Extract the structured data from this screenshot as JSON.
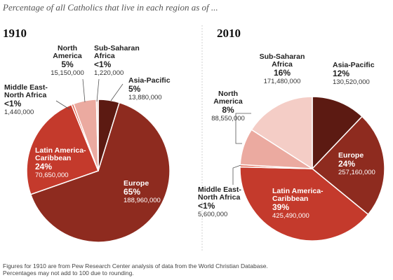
{
  "subtitle": "Percentage of all Catholics that live in each region as of ...",
  "footnote": {
    "line1": "Figures for 1910 are from Pew Research Center analysis of data from the World Christian Database.",
    "line2": "Percentages may not add to 100 due to rounding."
  },
  "colors": {
    "asia_pacific": "#5c1a12",
    "europe": "#8e2b1f",
    "latin_america": "#c43a2c",
    "mena": "#e4644f",
    "north_america": "#ebaaa0",
    "sub_saharan": "#f4cdc6"
  },
  "chart_data": [
    {
      "type": "pie",
      "title": "1910",
      "slices": [
        {
          "name": "Asia-Pacific",
          "percent_label": "5%",
          "value": 13880000,
          "count_label": "13,880,000"
        },
        {
          "name": "Europe",
          "percent_label": "65%",
          "value": 188960000,
          "count_label": "188,960,000"
        },
        {
          "name": "Latin America-Caribbean",
          "name_lines": [
            "Latin America-",
            "Caribbean"
          ],
          "percent_label": "24%",
          "value": 70650000,
          "count_label": "70,650,000"
        },
        {
          "name": "Middle East-North Africa",
          "name_lines": [
            "Middle East-",
            "North Africa"
          ],
          "percent_label": "<1%",
          "value": 1440000,
          "count_label": "1,440,000"
        },
        {
          "name": "North America",
          "name_lines": [
            "North",
            "America"
          ],
          "percent_label": "5%",
          "value": 15150000,
          "count_label": "15,150,000"
        },
        {
          "name": "Sub-Saharan Africa",
          "name_lines": [
            "Sub-Saharan",
            "Africa"
          ],
          "percent_label": "<1%",
          "value": 1220000,
          "count_label": "1,220,000"
        }
      ]
    },
    {
      "type": "pie",
      "title": "2010",
      "slices": [
        {
          "name": "Asia-Pacific",
          "percent_label": "12%",
          "value": 130520000,
          "count_label": "130,520,000"
        },
        {
          "name": "Europe",
          "percent_label": "24%",
          "value": 257160000,
          "count_label": "257,160,000"
        },
        {
          "name": "Latin America-Caribbean",
          "name_lines": [
            "Latin America-",
            "Caribbean"
          ],
          "percent_label": "39%",
          "value": 425490000,
          "count_label": "425,490,000"
        },
        {
          "name": "Middle East-North Africa",
          "name_lines": [
            "Middle East-",
            "North Africa"
          ],
          "percent_label": "<1%",
          "value": 5600000,
          "count_label": "5,600,000"
        },
        {
          "name": "North America",
          "name_lines": [
            "North",
            "America"
          ],
          "percent_label": "8%",
          "value": 88550000,
          "count_label": "88,550,000"
        },
        {
          "name": "Sub-Saharan Africa",
          "name_lines": [
            "Sub-Saharan",
            "Africa"
          ],
          "percent_label": "16%",
          "value": 171480000,
          "count_label": "171,480,000"
        }
      ]
    }
  ]
}
